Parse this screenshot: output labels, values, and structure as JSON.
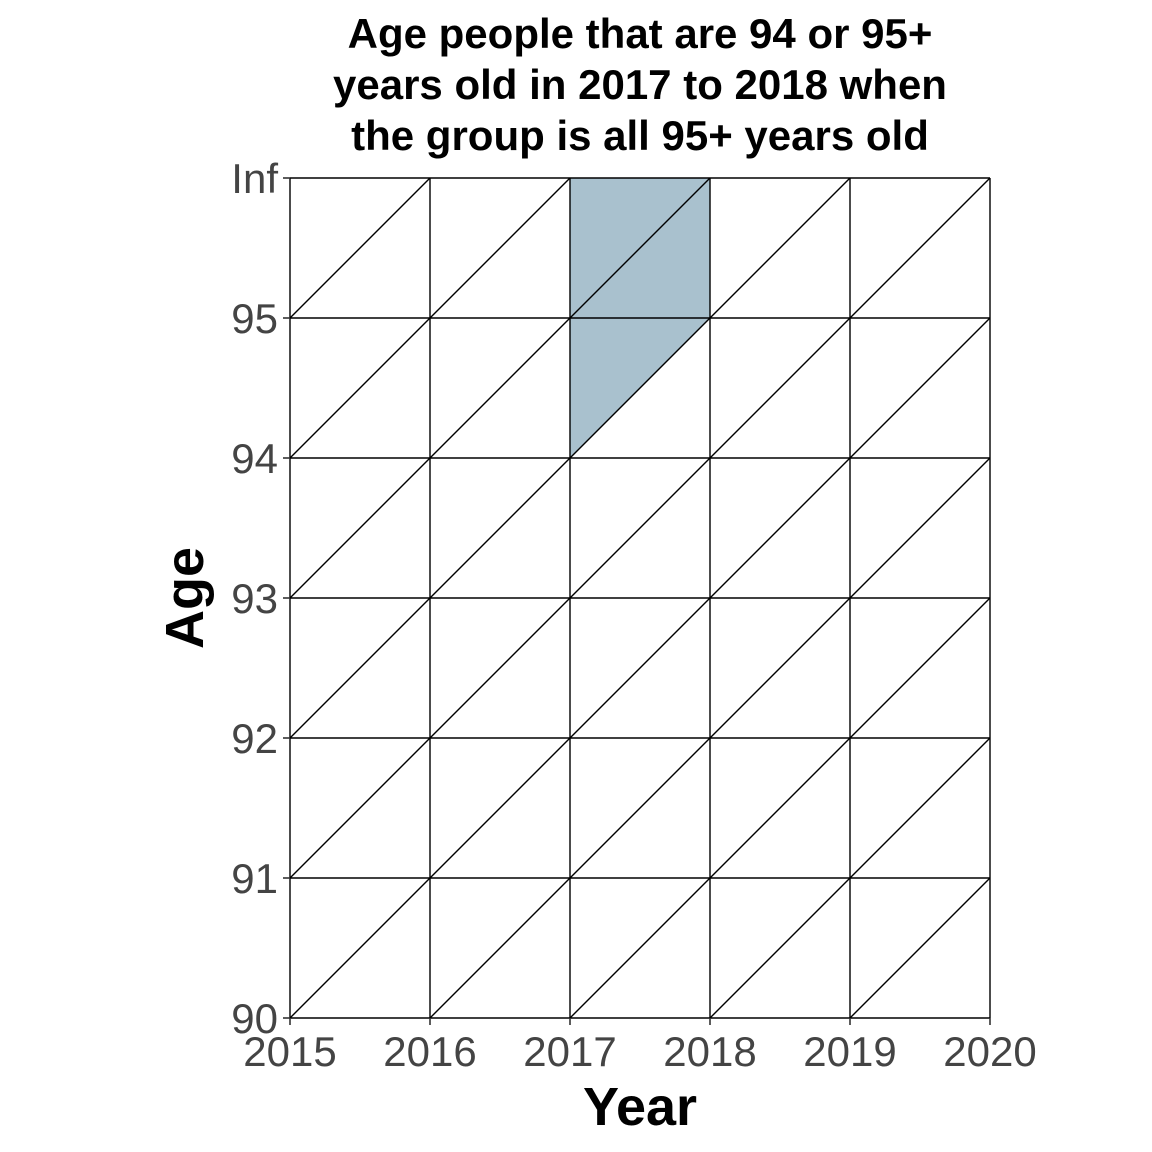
{
  "chart_data": {
    "type": "lexis",
    "title_lines": [
      "Age people that are 94 or 95+",
      "years old in 2017 to 2018 when",
      "the group is all 95+ years old"
    ],
    "xlabel": "Year",
    "ylabel": "Age",
    "x_ticks": [
      "2015",
      "2016",
      "2017",
      "2018",
      "2019",
      "2020"
    ],
    "y_ticks": [
      "90",
      "91",
      "92",
      "93",
      "94",
      "95",
      "Inf"
    ],
    "xlim": [
      2015,
      2020
    ],
    "y_levels": 6,
    "grid": true,
    "shaded_region": {
      "color": "#a9c1ce",
      "description_cells": [
        {
          "x": 2017,
          "y_from": 94,
          "y_to": "Inf"
        },
        {
          "x": 2018,
          "y_from": 95,
          "y_to": "Inf"
        }
      ],
      "polygon": [
        {
          "x": 2017,
          "y": "94"
        },
        {
          "x": 2017,
          "y": "Inf"
        },
        {
          "x": 2018,
          "y": "Inf"
        },
        {
          "x": 2018,
          "y": "95"
        }
      ]
    }
  }
}
